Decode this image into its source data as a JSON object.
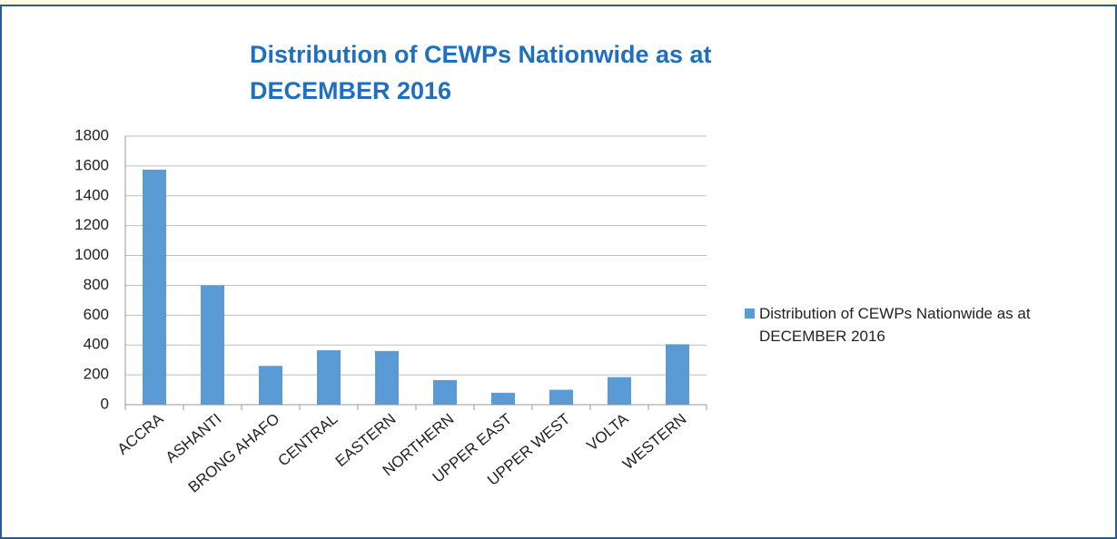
{
  "chart_data": {
    "type": "bar",
    "title": "Distribution of CEWPs Nationwide as at DECEMBER 2016",
    "categories": [
      "ACCRA",
      "ASHANTI",
      "BRONG AHAFO",
      "CENTRAL",
      "EASTERN",
      "NORTHERN",
      "UPPER EAST",
      "UPPER WEST",
      "VOLTA",
      "WESTERN"
    ],
    "series": [
      {
        "name": "Distribution of CEWPs Nationwide as at DECEMBER 2016",
        "color": "#5b9bd5",
        "values": [
          1575,
          800,
          260,
          365,
          360,
          165,
          80,
          100,
          185,
          405
        ]
      }
    ],
    "ylim": [
      0,
      1800
    ],
    "yticks": [
      0,
      200,
      400,
      600,
      800,
      1000,
      1200,
      1400,
      1600,
      1800
    ],
    "grid": true,
    "legend": "right"
  }
}
